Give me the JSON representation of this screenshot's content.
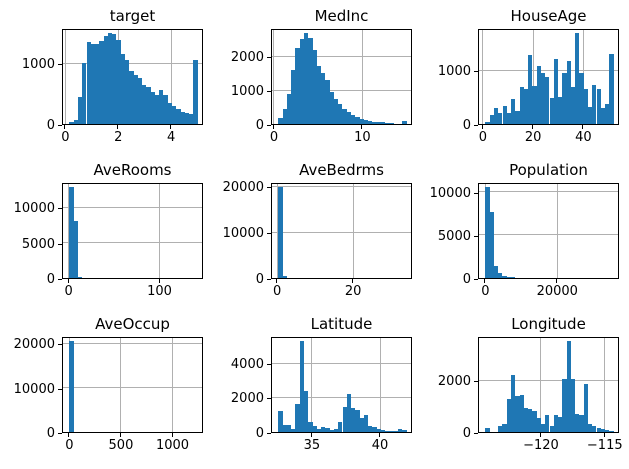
{
  "figure": {
    "background_color": "#ffffff",
    "bar_color": "#1f77b4",
    "grid_color": "#b0b0b0",
    "frame_color": "#000000",
    "text_color": "#000000",
    "grid": true,
    "legend": "none",
    "layout": "3x3 histogram grid of California housing features"
  },
  "chart_data": [
    {
      "type": "bar",
      "subtype": "histogram",
      "title": "target",
      "bin_start": 0.15,
      "bin_width": 0.1617,
      "values": [
        30,
        70,
        450,
        1000,
        1350,
        1310,
        1320,
        1360,
        1440,
        1500,
        1470,
        1380,
        1150,
        1050,
        870,
        800,
        760,
        640,
        600,
        520,
        480,
        560,
        470,
        350,
        300,
        240,
        200,
        180,
        160,
        1050
      ],
      "xlim": [
        -0.0925,
        5.2425
      ],
      "ylim": [
        0,
        1575
      ],
      "xticks": [
        {
          "value": 0,
          "label": "0"
        },
        {
          "value": 2,
          "label": "2"
        },
        {
          "value": 4,
          "label": "4"
        }
      ],
      "yticks": [
        {
          "value": 0,
          "label": "0"
        },
        {
          "value": 1000,
          "label": "1000"
        }
      ]
    },
    {
      "type": "bar",
      "subtype": "histogram",
      "title": "MedInc",
      "bin_start": 0.5,
      "bin_width": 0.4833,
      "values": [
        170,
        450,
        900,
        1600,
        2250,
        2500,
        2700,
        2550,
        2200,
        1700,
        1500,
        1300,
        950,
        750,
        600,
        450,
        350,
        270,
        200,
        150,
        110,
        90,
        70,
        60,
        50,
        30,
        20,
        15,
        10,
        80
      ],
      "xlim": [
        -0.225,
        15.725
      ],
      "ylim": [
        0,
        2835
      ],
      "xticks": [
        {
          "value": 0,
          "label": "0"
        },
        {
          "value": 10,
          "label": "10"
        }
      ],
      "yticks": [
        {
          "value": 0,
          "label": "0"
        },
        {
          "value": 1000,
          "label": "1000"
        },
        {
          "value": 2000,
          "label": "2000"
        }
      ]
    },
    {
      "type": "bar",
      "subtype": "histogram",
      "title": "HouseAge",
      "bin_start": 1,
      "bin_width": 1.7,
      "values": [
        30,
        170,
        290,
        210,
        330,
        200,
        460,
        250,
        680,
        650,
        1290,
        700,
        1080,
        950,
        880,
        480,
        1200,
        500,
        940,
        1180,
        680,
        1700,
        950,
        650,
        320,
        720,
        660,
        300,
        380,
        1310
      ],
      "xlim": [
        -1.55,
        54.55
      ],
      "ylim": [
        0,
        1785
      ],
      "xticks": [
        {
          "value": 0,
          "label": "0"
        },
        {
          "value": 20,
          "label": "20"
        },
        {
          "value": 40,
          "label": "40"
        }
      ],
      "yticks": [
        {
          "value": 0,
          "label": "0"
        },
        {
          "value": 1000,
          "label": "1000"
        }
      ]
    },
    {
      "type": "bar",
      "subtype": "histogram",
      "title": "AveRooms",
      "bin_start": 0.85,
      "bin_width": 4.7,
      "values": [
        12900,
        8000,
        180,
        40,
        15,
        8,
        5,
        3,
        2,
        2,
        1,
        1,
        1,
        0,
        0,
        0,
        0,
        0,
        0,
        0,
        0,
        0,
        0,
        0,
        0,
        0,
        0,
        0,
        0,
        1
      ],
      "xlim": [
        -6.2,
        148.9
      ],
      "ylim": [
        0,
        13545
      ],
      "xticks": [
        {
          "value": 0,
          "label": "0"
        },
        {
          "value": 100,
          "label": "100"
        }
      ],
      "yticks": [
        {
          "value": 0,
          "label": "0"
        },
        {
          "value": 5000,
          "label": "5000"
        },
        {
          "value": 10000,
          "label": "10000"
        }
      ]
    },
    {
      "type": "bar",
      "subtype": "histogram",
      "title": "AveBedrms",
      "bin_start": 0.33,
      "bin_width": 1.124,
      "values": [
        19900,
        350,
        60,
        20,
        8,
        4,
        2,
        1,
        1,
        1,
        0,
        0,
        0,
        0,
        0,
        0,
        0,
        0,
        0,
        0,
        0,
        0,
        0,
        0,
        0,
        0,
        0,
        0,
        0,
        1
      ],
      "xlim": [
        -1.356,
        35.736
      ],
      "ylim": [
        0,
        20895
      ],
      "xticks": [
        {
          "value": 0,
          "label": "0"
        },
        {
          "value": 20,
          "label": "20"
        }
      ],
      "yticks": [
        {
          "value": 0,
          "label": "0"
        },
        {
          "value": 10000,
          "label": "10000"
        },
        {
          "value": 20000,
          "label": "20000"
        }
      ]
    },
    {
      "type": "bar",
      "subtype": "histogram",
      "title": "Population",
      "bin_start": 3,
      "bin_width": 1189,
      "values": [
        10600,
        7600,
        1400,
        600,
        250,
        120,
        60,
        30,
        15,
        8,
        5,
        3,
        2,
        2,
        1,
        1,
        1,
        0,
        0,
        0,
        0,
        0,
        0,
        0,
        0,
        0,
        0,
        0,
        0,
        1
      ],
      "xlim": [
        -1780,
        37456
      ],
      "ylim": [
        0,
        11130
      ],
      "xticks": [
        {
          "value": 0,
          "label": "0"
        },
        {
          "value": 20000,
          "label": "20000"
        }
      ],
      "yticks": [
        {
          "value": 0,
          "label": "0"
        },
        {
          "value": 5000,
          "label": "5000"
        },
        {
          "value": 10000,
          "label": "10000"
        }
      ]
    },
    {
      "type": "bar",
      "subtype": "histogram",
      "title": "AveOccup",
      "bin_start": 0.7,
      "bin_width": 41.4,
      "values": [
        20600,
        30,
        5,
        2,
        1,
        0,
        0,
        0,
        0,
        0,
        0,
        0,
        0,
        0,
        0,
        0,
        0,
        0,
        0,
        0,
        0,
        0,
        0,
        0,
        0,
        0,
        0,
        0,
        0,
        1
      ],
      "xlim": [
        -61.4,
        1304.8
      ],
      "ylim": [
        0,
        21630
      ],
      "xticks": [
        {
          "value": 0,
          "label": "0"
        },
        {
          "value": 500,
          "label": "500"
        },
        {
          "value": 1000,
          "label": "1000"
        }
      ],
      "yticks": [
        {
          "value": 0,
          "label": "0"
        },
        {
          "value": 10000,
          "label": "10000"
        },
        {
          "value": 20000,
          "label": "20000"
        }
      ]
    },
    {
      "type": "bar",
      "subtype": "histogram",
      "title": "Latitude",
      "bin_start": 32.54,
      "bin_width": 0.3137,
      "values": [
        1200,
        400,
        380,
        150,
        1600,
        5300,
        2400,
        600,
        330,
        150,
        280,
        250,
        90,
        150,
        600,
        1450,
        2200,
        1400,
        1300,
        800,
        1000,
        350,
        300,
        150,
        100,
        50,
        40,
        30,
        150,
        130
      ],
      "xlim": [
        32.07,
        42.42
      ],
      "ylim": [
        0,
        5565
      ],
      "xticks": [
        {
          "value": 35,
          "label": "35"
        },
        {
          "value": 40,
          "label": "40"
        }
      ],
      "yticks": [
        {
          "value": 0,
          "label": "0"
        },
        {
          "value": 2000,
          "label": "2000"
        },
        {
          "value": 4000,
          "label": "4000"
        }
      ]
    },
    {
      "type": "bar",
      "subtype": "histogram",
      "title": "Longitude",
      "bin_start": -124.35,
      "bin_width": 0.3347,
      "values": [
        150,
        20,
        10,
        250,
        300,
        1300,
        2200,
        1400,
        1420,
        950,
        900,
        820,
        550,
        300,
        650,
        250,
        650,
        600,
        2050,
        3550,
        2050,
        700,
        650,
        1850,
        300,
        250,
        150,
        120,
        60,
        40
      ],
      "xlim": [
        -124.852,
        -113.807
      ],
      "ylim": [
        0,
        3727
      ],
      "xticks": [
        {
          "value": -120,
          "label": "−120"
        },
        {
          "value": -115,
          "label": "−115"
        }
      ],
      "yticks": [
        {
          "value": 0,
          "label": "0"
        },
        {
          "value": 2000,
          "label": "2000"
        }
      ]
    }
  ]
}
